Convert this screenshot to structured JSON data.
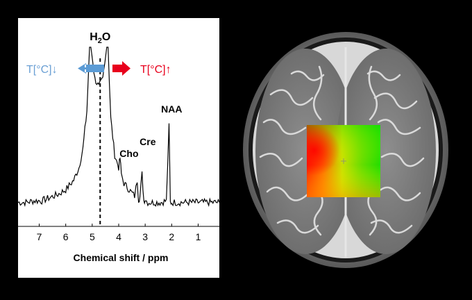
{
  "chart_data": {
    "type": "line",
    "xlabel": "Chemical shift / ppm",
    "ylabel": "",
    "xlim": [
      7.8,
      0.2
    ],
    "x_ticks": [
      "7",
      "6",
      "5",
      "4",
      "3",
      "2",
      "1"
    ],
    "x_tick_values": [
      7,
      6,
      5,
      4,
      3,
      2,
      1
    ],
    "grid": false,
    "series": [
      {
        "x": [
          7.8,
          7.5,
          7.2,
          6.9,
          6.6,
          6.3,
          6.0,
          5.7,
          5.5,
          5.35,
          5.2,
          5.1,
          5.05,
          4.9,
          4.75,
          4.6,
          4.45,
          4.4,
          4.3,
          4.15,
          4.0,
          3.95,
          3.9,
          3.8,
          3.6,
          3.4,
          3.3,
          3.25,
          3.2,
          3.12,
          3.05,
          3.0,
          2.9,
          2.6,
          2.4,
          2.2,
          2.1,
          2.05,
          2.0,
          1.9,
          1.6,
          1.2,
          0.8,
          0.4,
          0.2
        ],
        "y": [
          0.02,
          0.02,
          0.03,
          0.03,
          0.05,
          0.07,
          0.1,
          0.16,
          0.24,
          0.36,
          0.6,
          1.0,
          1.0,
          0.8,
          0.75,
          0.8,
          1.0,
          1.0,
          0.55,
          0.32,
          0.24,
          0.3,
          0.2,
          0.14,
          0.1,
          0.06,
          0.16,
          0.04,
          0.05,
          0.2,
          0.03,
          0.04,
          0.02,
          0.02,
          0.02,
          0.03,
          0.5,
          0.02,
          0.02,
          0.02,
          0.02,
          0.02,
          0.02,
          0.02,
          0.02
        ]
      }
    ],
    "annotations": {
      "water": {
        "prefix": "H",
        "sub": "2",
        "suffix": "O",
        "x": 4.7
      },
      "cho": {
        "label": "Cho",
        "x": 3.2
      },
      "cre": {
        "label": "Cre",
        "x": 3.0
      },
      "naa": {
        "label": "NAA",
        "x": 2.0
      },
      "temp_down": "T[°C]",
      "temp_down_arrow": "↓",
      "temp_up": "T[°C]",
      "temp_up_arrow": "↑"
    },
    "colors": {
      "temp_down": "#6a9fd4",
      "temp_down_arrow": "#5b9bd5",
      "temp_up": "#e8001c",
      "line": "#000000"
    }
  },
  "image": {
    "subject": "axial T2-weighted brain MRI with temperature map overlay",
    "overlay_colors": [
      "#00e000",
      "#c8e000",
      "#ffa000",
      "#ff1a00"
    ]
  }
}
